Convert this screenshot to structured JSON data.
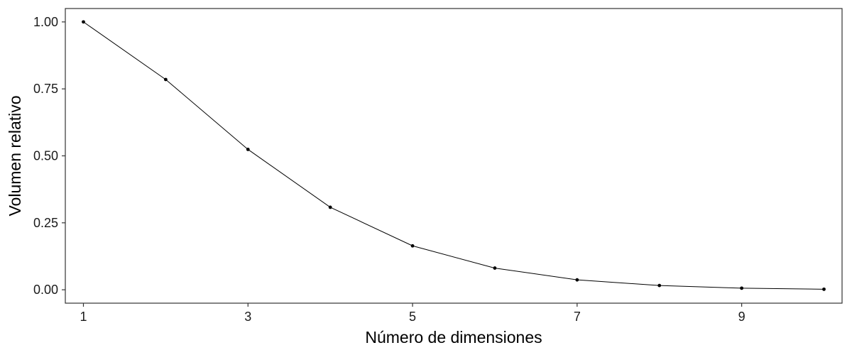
{
  "chart_data": {
    "type": "line",
    "title": "",
    "xlabel": "Número de dimensiones",
    "ylabel": "Volumen relativo",
    "x": [
      1,
      2,
      3,
      4,
      5,
      6,
      7,
      8,
      9,
      10
    ],
    "series": [
      {
        "values": [
          1.0,
          0.785,
          0.524,
          0.308,
          0.164,
          0.081,
          0.037,
          0.016,
          0.006,
          0.002
        ],
        "color": "#000000"
      }
    ],
    "xlim": [
      0.78,
      10.22
    ],
    "ylim": [
      -0.05,
      1.05
    ],
    "x_ticks": [
      1,
      3,
      5,
      7,
      9
    ],
    "x_tick_labels": [
      "1",
      "3",
      "5",
      "7",
      "9"
    ],
    "y_ticks": [
      0,
      0.25,
      0.5,
      0.75,
      1.0
    ],
    "y_tick_labels": [
      "0.00",
      "0.25",
      "0.50",
      "0.75",
      "1.00"
    ],
    "grid": false,
    "legend": "none",
    "marker": "point"
  }
}
